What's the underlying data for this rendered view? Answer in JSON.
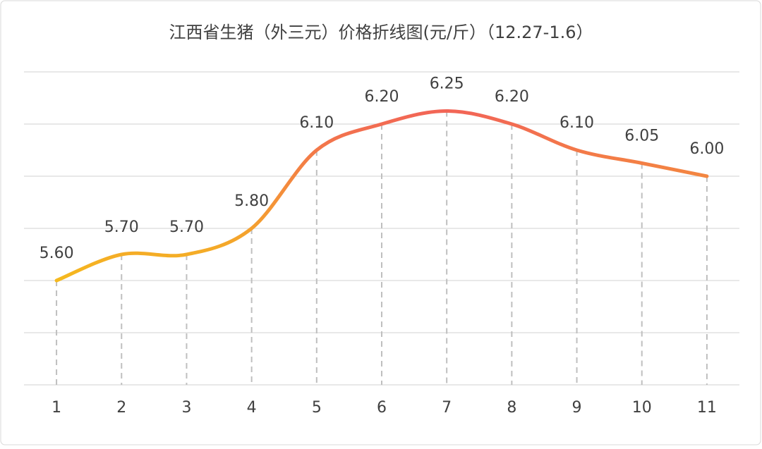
{
  "chart_data": {
    "type": "line",
    "title": "江西省生猪（外三元）价格折线图(元/斤）（12.27-1.6）",
    "categories": [
      "1",
      "2",
      "3",
      "4",
      "5",
      "6",
      "7",
      "8",
      "9",
      "10",
      "11"
    ],
    "values": [
      5.6,
      5.7,
      5.7,
      5.8,
      6.1,
      6.2,
      6.25,
      6.2,
      6.1,
      6.05,
      6.0
    ],
    "value_labels": [
      "5.60",
      "5.70",
      "5.70",
      "5.80",
      "6.10",
      "6.20",
      "6.25",
      "6.20",
      "6.10",
      "6.05",
      "6.00"
    ],
    "color_low": "#f5b91e",
    "color_high": "#f2605a",
    "ylim": [
      5.2,
      6.4
    ],
    "yticks": [
      5.2,
      5.4,
      5.6,
      5.8,
      6.0,
      6.2,
      6.4
    ],
    "grid": true,
    "smooth": true
  }
}
